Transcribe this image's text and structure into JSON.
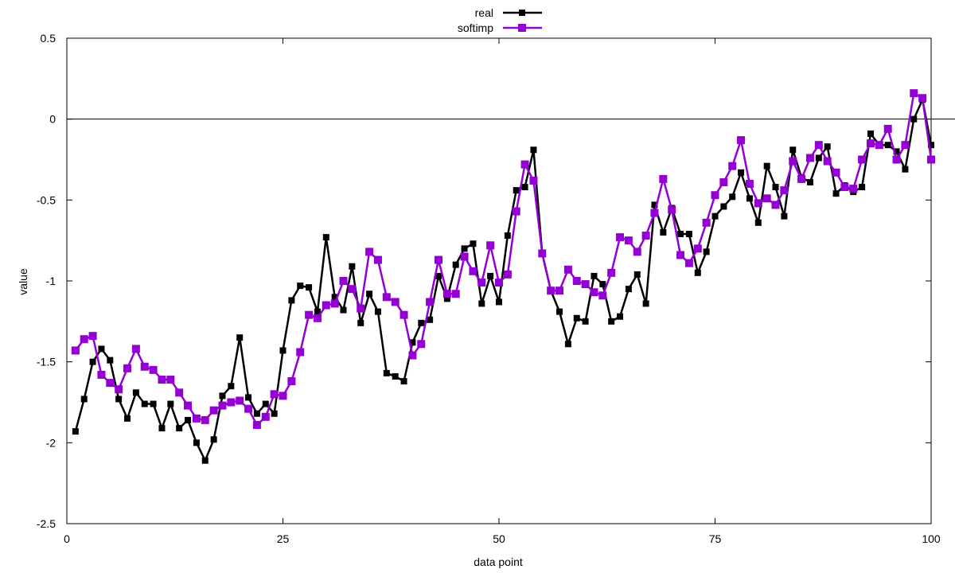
{
  "chart_data": {
    "type": "line",
    "xlabel": "data point",
    "ylabel": "value",
    "xlim": [
      0,
      100
    ],
    "ylim": [
      -2.5,
      0.5
    ],
    "x_ticks": [
      0,
      25,
      50,
      75,
      100
    ],
    "y_ticks": [
      -2.5,
      -2,
      -1.5,
      -1,
      -0.5,
      0,
      0.5
    ],
    "x_tick_labels": [
      "0",
      "25",
      "50",
      "75",
      "100"
    ],
    "y_tick_labels": [
      "-2.5",
      "-2",
      "-1.5",
      "-1",
      "-0.5",
      "0",
      "0.5"
    ],
    "zero_line": true,
    "grid": false,
    "legend_position": "top-center",
    "x": [
      1,
      2,
      3,
      4,
      5,
      6,
      7,
      8,
      9,
      10,
      11,
      12,
      13,
      14,
      15,
      16,
      17,
      18,
      19,
      20,
      21,
      22,
      23,
      24,
      25,
      26,
      27,
      28,
      29,
      30,
      31,
      32,
      33,
      34,
      35,
      36,
      37,
      38,
      39,
      40,
      41,
      42,
      43,
      44,
      45,
      46,
      47,
      48,
      49,
      50,
      51,
      52,
      53,
      54,
      55,
      56,
      57,
      58,
      59,
      60,
      61,
      62,
      63,
      64,
      65,
      66,
      67,
      68,
      69,
      70,
      71,
      72,
      73,
      74,
      75,
      76,
      77,
      78,
      79,
      80,
      81,
      82,
      83,
      84,
      85,
      86,
      87,
      88,
      89,
      90,
      91,
      92,
      93,
      94,
      95,
      96,
      97,
      98,
      99,
      100
    ],
    "series": [
      {
        "name": "real",
        "color": "#000000",
        "marker_size": 8,
        "line_width": 2.5,
        "values": [
          -1.93,
          -1.73,
          -1.5,
          -1.42,
          -1.49,
          -1.73,
          -1.85,
          -1.69,
          -1.76,
          -1.76,
          -1.91,
          -1.76,
          -1.91,
          -1.86,
          -2.0,
          -2.11,
          -1.98,
          -1.71,
          -1.65,
          -1.35,
          -1.72,
          -1.82,
          -1.76,
          -1.82,
          -1.43,
          -1.12,
          -1.03,
          -1.04,
          -1.19,
          -0.73,
          -1.1,
          -1.18,
          -0.91,
          -1.26,
          -1.08,
          -1.19,
          -1.57,
          -1.59,
          -1.62,
          -1.38,
          -1.26,
          -1.24,
          -0.97,
          -1.11,
          -0.9,
          -0.8,
          -0.77,
          -1.14,
          -0.97,
          -1.13,
          -0.72,
          -0.44,
          -0.42,
          -0.19,
          -0.83,
          -1.06,
          -1.19,
          -1.39,
          -1.23,
          -1.25,
          -0.97,
          -1.02,
          -1.25,
          -1.22,
          -1.05,
          -0.96,
          -1.14,
          -0.53,
          -0.7,
          -0.55,
          -0.71,
          -0.71,
          -0.95,
          -0.82,
          -0.6,
          -0.54,
          -0.48,
          -0.33,
          -0.49,
          -0.64,
          -0.29,
          -0.42,
          -0.6,
          -0.19,
          -0.36,
          -0.39,
          -0.24,
          -0.17,
          -0.46,
          -0.41,
          -0.45,
          -0.42,
          -0.09,
          -0.16,
          -0.16,
          -0.2,
          -0.31,
          0.0,
          0.12,
          -0.16
        ]
      },
      {
        "name": "softimp",
        "color": "#9400d3",
        "marker_size": 10,
        "line_width": 2.5,
        "values": [
          -1.43,
          -1.36,
          -1.34,
          -1.58,
          -1.63,
          -1.67,
          -1.54,
          -1.42,
          -1.53,
          -1.55,
          -1.61,
          -1.61,
          -1.69,
          -1.77,
          -1.85,
          -1.86,
          -1.8,
          -1.77,
          -1.75,
          -1.74,
          -1.79,
          -1.89,
          -1.84,
          -1.7,
          -1.71,
          -1.62,
          -1.44,
          -1.21,
          -1.23,
          -1.15,
          -1.14,
          -1.0,
          -1.05,
          -1.17,
          -0.82,
          -0.87,
          -1.1,
          -1.13,
          -1.21,
          -1.46,
          -1.39,
          -1.13,
          -0.87,
          -1.08,
          -1.08,
          -0.85,
          -0.94,
          -1.01,
          -0.78,
          -1.01,
          -0.96,
          -0.57,
          -0.28,
          -0.38,
          -0.83,
          -1.06,
          -1.06,
          -0.93,
          -1.0,
          -1.02,
          -1.07,
          -1.09,
          -0.95,
          -0.73,
          -0.75,
          -0.82,
          -0.72,
          -0.58,
          -0.37,
          -0.56,
          -0.84,
          -0.89,
          -0.8,
          -0.64,
          -0.47,
          -0.39,
          -0.29,
          -0.13,
          -0.4,
          -0.52,
          -0.49,
          -0.53,
          -0.44,
          -0.26,
          -0.37,
          -0.24,
          -0.16,
          -0.26,
          -0.33,
          -0.42,
          -0.43,
          -0.25,
          -0.15,
          -0.16,
          -0.06,
          -0.25,
          -0.16,
          0.16,
          0.13,
          -0.25
        ]
      }
    ]
  }
}
